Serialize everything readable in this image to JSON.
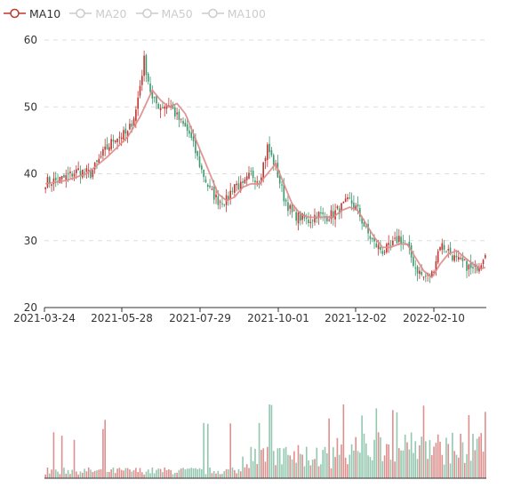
{
  "legend": [
    {
      "label": "MA10",
      "active": true,
      "color": "#c23531"
    },
    {
      "label": "MA20",
      "active": false,
      "color": "#cccccc"
    },
    {
      "label": "MA50",
      "active": false,
      "color": "#cccccc"
    },
    {
      "label": "MA100",
      "active": false,
      "color": "#cccccc"
    }
  ],
  "colors": {
    "up": "#c23531",
    "down": "#3d9970",
    "ma10": "#e08888",
    "inactive": "#cccccc",
    "grid": "#dddddd",
    "axis": "#333333"
  },
  "chart_data": {
    "type": "candlestick",
    "x_tick_labels": [
      "2021-03-24",
      "2021-05-28",
      "2021-07-29",
      "2021-10-01",
      "2021-12-02",
      "2022-02-10"
    ],
    "y_ticks": [
      20,
      30,
      40,
      50,
      60
    ],
    "ylim": [
      20,
      60
    ],
    "grid": "dashed horizontal",
    "legend_position": "top-left",
    "series": [
      {
        "name": "MA10",
        "visible": true
      },
      {
        "name": "MA20",
        "visible": false
      },
      {
        "name": "MA50",
        "visible": false
      },
      {
        "name": "MA100",
        "visible": false
      }
    ],
    "close_keypoints": [
      [
        0,
        38.8
      ],
      [
        6,
        39.0
      ],
      [
        10,
        39.5
      ],
      [
        16,
        40.5
      ],
      [
        22,
        40.0
      ],
      [
        28,
        43.0
      ],
      [
        34,
        45.5
      ],
      [
        40,
        46.0
      ],
      [
        44,
        49.5
      ],
      [
        48,
        57.0
      ],
      [
        52,
        51.0
      ],
      [
        56,
        50.0
      ],
      [
        60,
        50.5
      ],
      [
        64,
        48.5
      ],
      [
        70,
        46.0
      ],
      [
        76,
        40.5
      ],
      [
        80,
        37.5
      ],
      [
        84,
        36.0
      ],
      [
        88,
        36.0
      ],
      [
        92,
        38.5
      ],
      [
        96,
        38.0
      ],
      [
        100,
        40.0
      ],
      [
        104,
        39.0
      ],
      [
        108,
        44.0
      ],
      [
        112,
        41.0
      ],
      [
        116,
        36.5
      ],
      [
        120,
        34.0
      ],
      [
        124,
        33.5
      ],
      [
        128,
        33.0
      ],
      [
        132,
        34.0
      ],
      [
        136,
        33.5
      ],
      [
        140,
        34.0
      ],
      [
        144,
        35.0
      ],
      [
        148,
        36.0
      ],
      [
        152,
        34.5
      ],
      [
        156,
        31.5
      ],
      [
        160,
        29.5
      ],
      [
        164,
        28.5
      ],
      [
        168,
        29.0
      ],
      [
        172,
        30.5
      ],
      [
        176,
        29.0
      ],
      [
        180,
        26.0
      ],
      [
        184,
        24.5
      ],
      [
        188,
        25.0
      ],
      [
        192,
        29.5
      ],
      [
        196,
        28.5
      ],
      [
        200,
        27.0
      ],
      [
        204,
        26.5
      ],
      [
        208,
        25.5
      ],
      [
        212,
        27.0
      ],
      [
        214,
        28.5
      ]
    ],
    "ma10_keypoints": [
      [
        0,
        38.5
      ],
      [
        10,
        39.0
      ],
      [
        20,
        40.0
      ],
      [
        30,
        42.5
      ],
      [
        40,
        45.5
      ],
      [
        46,
        48.5
      ],
      [
        52,
        52.5
      ],
      [
        56,
        51.0
      ],
      [
        60,
        50.0
      ],
      [
        64,
        50.5
      ],
      [
        68,
        49.0
      ],
      [
        72,
        46.0
      ],
      [
        76,
        43.0
      ],
      [
        80,
        40.0
      ],
      [
        84,
        37.0
      ],
      [
        88,
        36.0
      ],
      [
        92,
        36.5
      ],
      [
        96,
        38.0
      ],
      [
        100,
        38.5
      ],
      [
        104,
        38.5
      ],
      [
        108,
        40.0
      ],
      [
        112,
        41.5
      ],
      [
        116,
        38.5
      ],
      [
        120,
        35.5
      ],
      [
        124,
        34.0
      ],
      [
        128,
        33.5
      ],
      [
        132,
        33.5
      ],
      [
        136,
        33.5
      ],
      [
        140,
        33.5
      ],
      [
        144,
        34.5
      ],
      [
        148,
        35.0
      ],
      [
        152,
        34.5
      ],
      [
        156,
        32.5
      ],
      [
        160,
        30.5
      ],
      [
        164,
        29.0
      ],
      [
        168,
        29.0
      ],
      [
        172,
        29.5
      ],
      [
        176,
        29.5
      ],
      [
        180,
        27.5
      ],
      [
        184,
        25.5
      ],
      [
        188,
        24.5
      ],
      [
        192,
        26.5
      ],
      [
        196,
        28.0
      ],
      [
        200,
        28.5
      ],
      [
        204,
        27.5
      ],
      [
        208,
        26.5
      ],
      [
        212,
        25.8
      ],
      [
        214,
        26.0
      ]
    ],
    "n_bars": 215
  }
}
